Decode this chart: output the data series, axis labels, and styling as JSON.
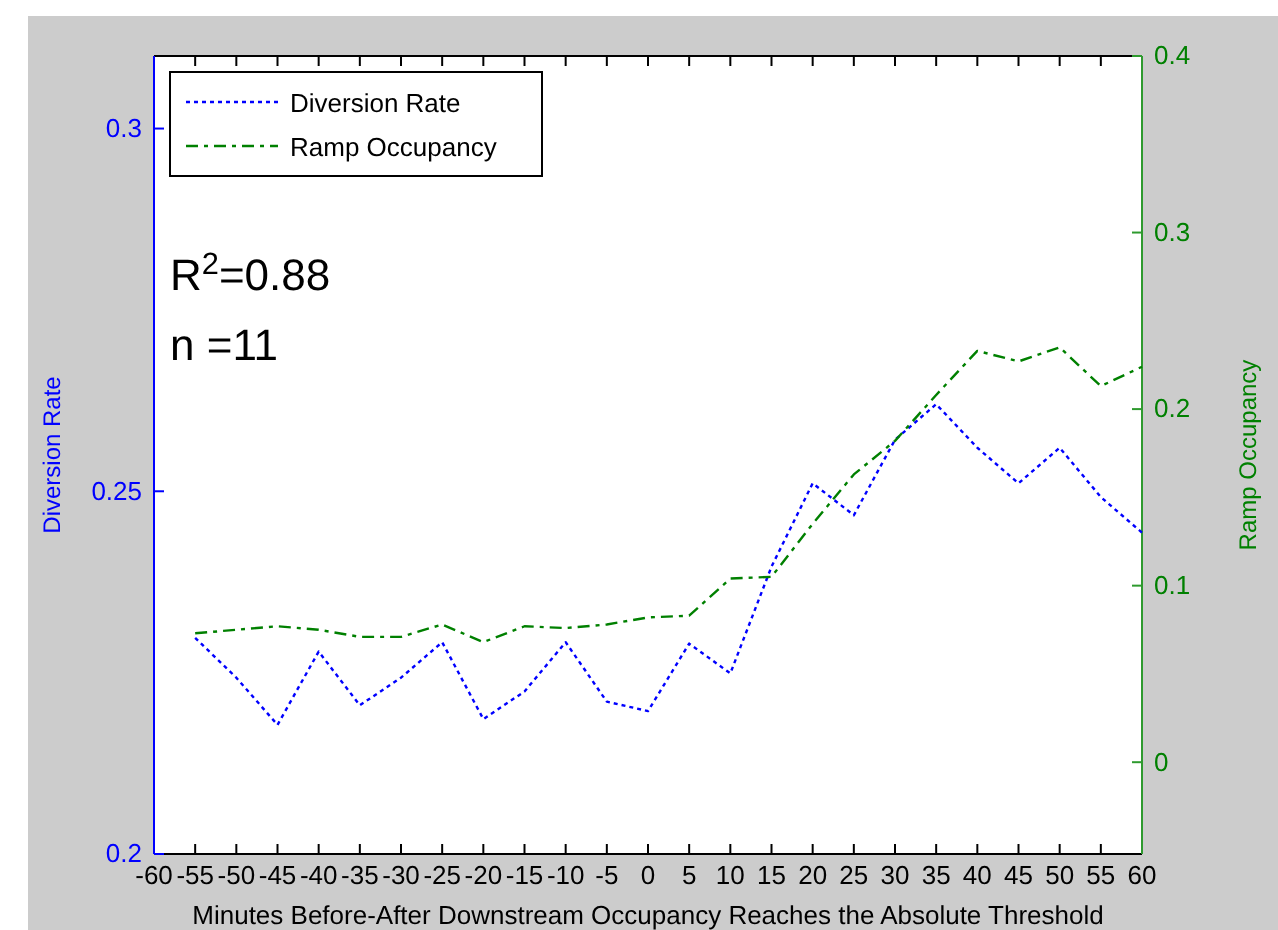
{
  "chart_data": {
    "type": "line",
    "xlabel": "Minutes Before-After Downstream Occupancy Reaches the Absolute Threshold",
    "ylabel": "Diversion Rate",
    "y2label": "Ramp Occupancy",
    "x": [
      -55,
      -50,
      -45,
      -40,
      -35,
      -30,
      -25,
      -20,
      -15,
      -10,
      -5,
      0,
      5,
      10,
      15,
      20,
      25,
      30,
      35,
      40,
      45,
      50,
      55,
      60
    ],
    "series": [
      {
        "name": "Diversion Rate",
        "color": "#0000ff",
        "line_style": "dotted",
        "values": [
          0.2298,
          0.2243,
          0.2178,
          0.2279,
          0.2205,
          0.2243,
          0.2292,
          0.2186,
          0.2224,
          0.2292,
          0.221,
          0.2197,
          0.229,
          0.2249,
          0.2396,
          0.2511,
          0.2467,
          0.2571,
          0.262,
          0.256,
          0.2511,
          0.256,
          0.2492,
          0.2443
        ]
      },
      {
        "name": "Ramp Occupancy",
        "color": "#008000",
        "line_style": "dashed",
        "axis": "y2",
        "values": [
          0.073,
          0.075,
          0.077,
          0.075,
          0.071,
          0.071,
          0.078,
          0.068,
          0.077,
          0.076,
          0.078,
          0.082,
          0.083,
          0.104,
          0.105,
          0.135,
          0.163,
          0.182,
          0.208,
          0.233,
          0.227,
          0.235,
          0.213,
          0.224
        ]
      }
    ],
    "xlim": [
      -60,
      60
    ],
    "xticks": [
      -60,
      -55,
      -50,
      -45,
      -40,
      -35,
      -30,
      -25,
      -20,
      -15,
      -10,
      -5,
      0,
      5,
      10,
      15,
      20,
      25,
      30,
      35,
      40,
      45,
      50,
      55,
      60
    ],
    "ylim": [
      0.2,
      0.31
    ],
    "yticks": [
      0.2,
      0.25,
      0.3
    ],
    "y2lim": [
      -0.052,
      0.4
    ],
    "y2ticks": [
      0,
      0.1,
      0.2,
      0.3,
      0.4
    ],
    "annotations": [
      "R$^{2}$=0.88",
      "n =11"
    ],
    "legend": "top left",
    "grid": false,
    "marker": "none"
  }
}
